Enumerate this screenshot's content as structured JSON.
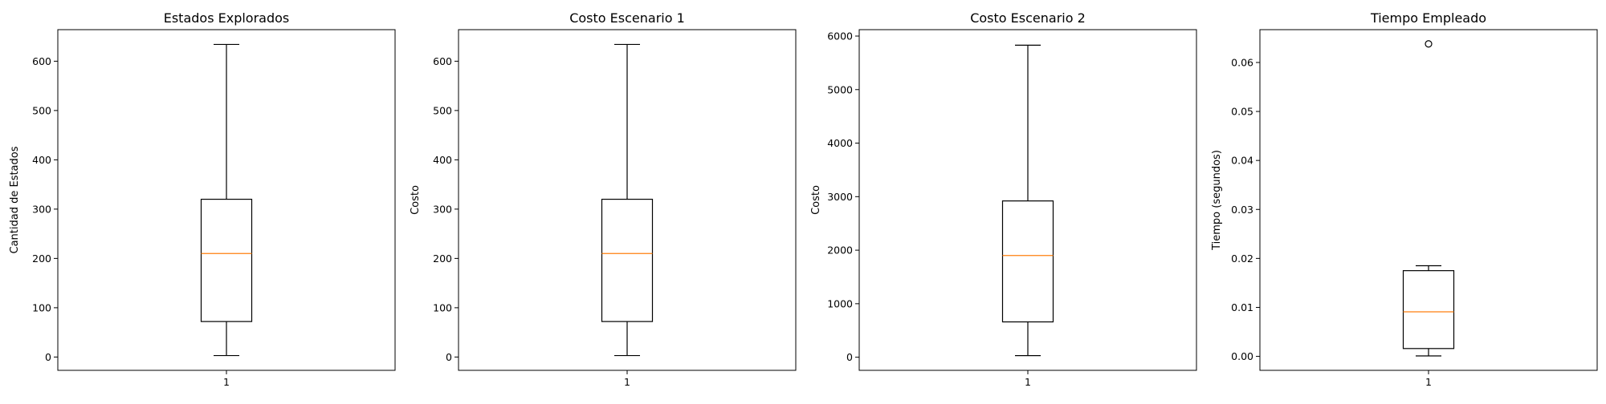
{
  "chart_data": [
    {
      "type": "box",
      "title": "Estados Explorados",
      "ylabel": "Cantidad de Estados",
      "xticks": [
        "1"
      ],
      "ylim": [
        -27,
        664
      ],
      "yticks": [
        0,
        100,
        200,
        300,
        400,
        500,
        600
      ],
      "ytick_labels": [
        "0",
        "100",
        "200",
        "300",
        "400",
        "500",
        "600"
      ],
      "boxes": [
        {
          "whisker_low": 3,
          "q1": 72,
          "median": 210,
          "q3": 320,
          "whisker_high": 634,
          "outliers": []
        }
      ]
    },
    {
      "type": "box",
      "title": "Costo Escenario 1",
      "ylabel": "Costo",
      "xticks": [
        "1"
      ],
      "ylim": [
        -27,
        664
      ],
      "yticks": [
        0,
        100,
        200,
        300,
        400,
        500,
        600
      ],
      "ytick_labels": [
        "0",
        "100",
        "200",
        "300",
        "400",
        "500",
        "600"
      ],
      "boxes": [
        {
          "whisker_low": 3,
          "q1": 72,
          "median": 210,
          "q3": 320,
          "whisker_high": 634,
          "outliers": []
        }
      ]
    },
    {
      "type": "box",
      "title": "Costo Escenario 2",
      "ylabel": "Costo",
      "xticks": [
        "1"
      ],
      "ylim": [
        -245,
        6120
      ],
      "yticks": [
        0,
        1000,
        2000,
        3000,
        4000,
        5000,
        6000
      ],
      "ytick_labels": [
        "0",
        "1000",
        "2000",
        "3000",
        "4000",
        "5000",
        "6000"
      ],
      "boxes": [
        {
          "whisker_low": 30,
          "q1": 660,
          "median": 1900,
          "q3": 2920,
          "whisker_high": 5830,
          "outliers": []
        }
      ]
    },
    {
      "type": "box",
      "title": "Tiempo Empleado",
      "ylabel": "Tiempo (segundos)",
      "xticks": [
        "1"
      ],
      "ylim": [
        -0.00285,
        0.0667
      ],
      "yticks": [
        0,
        0.01,
        0.02,
        0.03,
        0.04,
        0.05,
        0.06
      ],
      "ytick_labels": [
        "0.00",
        "0.01",
        "0.02",
        "0.03",
        "0.04",
        "0.05",
        "0.06"
      ],
      "boxes": [
        {
          "whisker_low": 0.0001,
          "q1": 0.0016,
          "median": 0.0091,
          "q3": 0.0175,
          "whisker_high": 0.0185,
          "outliers": [
            0.0638
          ]
        }
      ]
    }
  ],
  "colors": {
    "median": "#ff7f0e",
    "box": "#000000",
    "background": "#ffffff"
  }
}
